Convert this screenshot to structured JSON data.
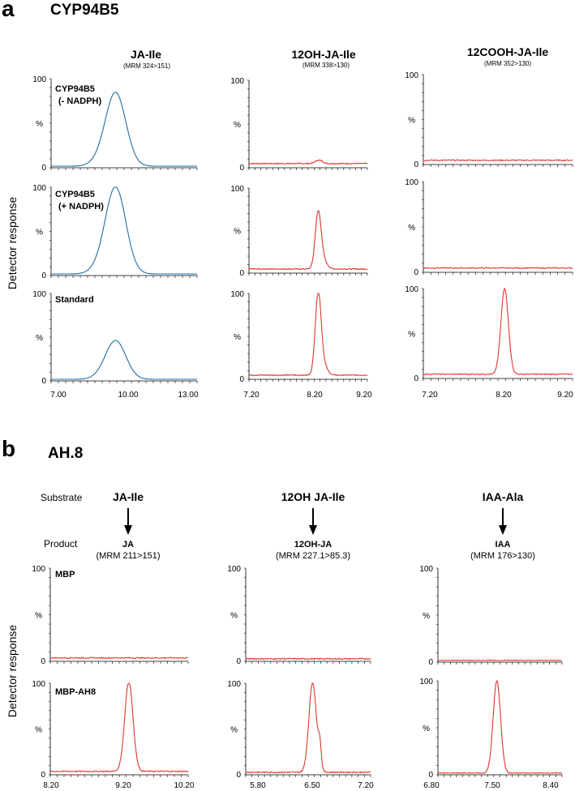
{
  "panel_a": {
    "letter": "a",
    "title": "CYP94B5",
    "ylabel": "Detector response",
    "columns": [
      {
        "name": "JA-Ile",
        "mrm": "(MRM 324>151)"
      },
      {
        "name": "12OH-JA-Ile",
        "mrm": "(MRM 338>130)"
      },
      {
        "name": "12COOH-JA-Ile",
        "mrm": "(MRM 352>130)"
      }
    ],
    "rows": [
      {
        "label": "CYP94B5",
        "label2": "(- NADPH)"
      },
      {
        "label": "CYP94B5",
        "label2": "(+ NADPH)"
      },
      {
        "label": "Standard",
        "label2": ""
      }
    ]
  },
  "panel_b": {
    "letter": "b",
    "title": "AH.8",
    "ylabel": "Detector response",
    "substrate_label": "Substrate",
    "product_label": "Product",
    "columns": [
      {
        "substrate": "JA-Ile",
        "product": "JA",
        "mrm": "(MRM 211>151)"
      },
      {
        "substrate": "12OH JA-Ile",
        "product": "12OH-JA",
        "mrm": "(MRM 227.1>85.3)"
      },
      {
        "substrate": "IAA-Ala",
        "product": "IAA",
        "mrm": "(MRM 176>130)"
      }
    ],
    "rows": [
      {
        "label": "MBP"
      },
      {
        "label": "MBP-AH8"
      }
    ]
  },
  "y_ticks": {
    "top": "100",
    "mid": "%",
    "bottom": "0"
  },
  "colors": {
    "blue": "#1f6fa3",
    "red": "#e0342f"
  },
  "chart_data": [
    {
      "type": "line",
      "panel": "a",
      "column": "JA-Ile",
      "xlim": [
        7.0,
        13.0
      ],
      "ticks": [
        "7.00",
        "10.00",
        "13.00"
      ],
      "ylim": [
        0,
        100
      ],
      "color": "blue",
      "traces": [
        {
          "row": "CYP94B5 (- NADPH)",
          "baseline": 0,
          "peaks": [
            {
              "x": 9.65,
              "y": 84,
              "w": 0.07
            },
            {
              "x": 8.92,
              "y": 3,
              "w": 0.06
            }
          ]
        },
        {
          "row": "CYP94B5 (+ NADPH)",
          "baseline": 0,
          "peaks": [
            {
              "x": 9.65,
              "y": 100,
              "w": 0.07
            },
            {
              "x": 8.92,
              "y": 4,
              "w": 0.06
            }
          ]
        },
        {
          "row": "Standard",
          "baseline": 0,
          "peaks": [
            {
              "x": 9.65,
              "y": 45,
              "w": 0.07
            },
            {
              "x": 8.92,
              "y": 1,
              "w": 0.06
            }
          ]
        }
      ]
    },
    {
      "type": "line",
      "panel": "a",
      "column": "12OH-JA-Ile",
      "xlim": [
        7.2,
        9.2
      ],
      "ticks": [
        "7.20",
        "8.20",
        "9.20"
      ],
      "ylim": [
        0,
        100
      ],
      "color": "red",
      "traces": [
        {
          "row": "CYP94B5 (- NADPH)",
          "baseline": 3,
          "peaks": [
            {
              "x": 8.38,
              "y": 4,
              "w": 0.03
            }
          ]
        },
        {
          "row": "CYP94B5 (+ NADPH)",
          "baseline": 3,
          "peaks": [
            {
              "x": 8.37,
              "y": 68,
              "w": 0.025
            },
            {
              "x": 8.47,
              "y": 8,
              "w": 0.03
            }
          ]
        },
        {
          "row": "Standard",
          "baseline": 3,
          "peaks": [
            {
              "x": 8.37,
              "y": 97,
              "w": 0.025
            },
            {
              "x": 8.47,
              "y": 10,
              "w": 0.03
            }
          ]
        }
      ]
    },
    {
      "type": "line",
      "panel": "a",
      "column": "12COOH-JA-Ile",
      "xlim": [
        7.2,
        9.2
      ],
      "ticks": [
        "7.20",
        "8.20",
        "9.20"
      ],
      "ylim": [
        0,
        100
      ],
      "color": "red",
      "traces": [
        {
          "row": "CYP94B5 (- NADPH)",
          "baseline": 3,
          "peaks": []
        },
        {
          "row": "CYP94B5 (+ NADPH)",
          "baseline": 3,
          "peaks": []
        },
        {
          "row": "Standard",
          "baseline": 3,
          "peaks": [
            {
              "x": 8.29,
              "y": 97,
              "w": 0.025
            }
          ]
        }
      ]
    },
    {
      "type": "line",
      "panel": "b",
      "column": "JA",
      "xlim": [
        8.2,
        10.2
      ],
      "ticks": [
        "8.20",
        "9.20",
        "10.20"
      ],
      "ylim": [
        0,
        100
      ],
      "color": "red",
      "traces": [
        {
          "row": "MBP",
          "baseline": 2,
          "peaks": []
        },
        {
          "row": "MBP-AH8",
          "baseline": 2,
          "peaks": [
            {
              "x": 9.34,
              "y": 100,
              "w": 0.03
            }
          ]
        }
      ]
    },
    {
      "type": "line",
      "panel": "b",
      "column": "12OH-JA",
      "xlim": [
        5.8,
        7.2
      ],
      "ticks": [
        "5.80",
        "6.50",
        "7.20"
      ],
      "ylim": [
        0,
        100
      ],
      "color": "red",
      "traces": [
        {
          "row": "MBP",
          "baseline": 1,
          "peaks": []
        },
        {
          "row": "MBP-AH8",
          "baseline": 1,
          "peaks": [
            {
              "x": 6.55,
              "y": 100,
              "w": 0.03
            },
            {
              "x": 6.63,
              "y": 25,
              "w": 0.012
            }
          ]
        }
      ]
    },
    {
      "type": "line",
      "panel": "b",
      "column": "IAA",
      "xlim": [
        6.8,
        8.4
      ],
      "ticks": [
        "6.80",
        "7.50",
        "8.40"
      ],
      "ylim": [
        0,
        100
      ],
      "color": "red",
      "traces": [
        {
          "row": "MBP",
          "baseline": 0,
          "peaks": []
        },
        {
          "row": "MBP-AH8",
          "baseline": 0,
          "peaks": [
            {
              "x": 7.56,
              "y": 100,
              "w": 0.03
            }
          ]
        }
      ]
    }
  ]
}
